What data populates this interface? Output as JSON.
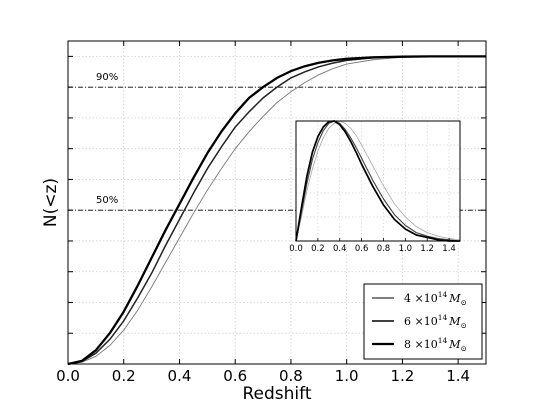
{
  "chart_data": {
    "type": "line",
    "title": "",
    "xlabel": "Redshift",
    "ylabel": "N(<z)",
    "xlim": [
      0.0,
      1.5
    ],
    "ylim": [
      0.0,
      1.05
    ],
    "xticks": [
      "0.0",
      "0.2",
      "0.4",
      "0.6",
      "0.8",
      "1.0",
      "1.2",
      "1.4"
    ],
    "grid": true,
    "reference_lines": [
      {
        "label": "90%",
        "y": 0.9
      },
      {
        "label": "50%",
        "y": 0.5
      }
    ],
    "legend": {
      "placement": "bottom-right",
      "entries": [
        {
          "text": "4 ×10",
          "sup": "14",
          "sym": "M",
          "sub": "⊙",
          "line": "thin"
        },
        {
          "text": "6 ×10",
          "sup": "14",
          "sym": "M",
          "sub": "⊙",
          "line": "medium"
        },
        {
          "text": "8 ×10",
          "sup": "14",
          "sym": "M",
          "sub": "⊙",
          "line": "thick"
        }
      ]
    },
    "series": [
      {
        "line": "thin",
        "color": "#777777",
        "x": [
          0.0,
          0.05,
          0.1,
          0.15,
          0.2,
          0.25,
          0.3,
          0.35,
          0.4,
          0.45,
          0.5,
          0.55,
          0.6,
          0.65,
          0.7,
          0.75,
          0.8,
          0.85,
          0.9,
          0.95,
          1.0,
          1.1,
          1.2,
          1.3,
          1.4,
          1.5
        ],
        "y": [
          0.0,
          0.006,
          0.025,
          0.06,
          0.11,
          0.175,
          0.25,
          0.33,
          0.41,
          0.49,
          0.565,
          0.635,
          0.7,
          0.755,
          0.805,
          0.85,
          0.885,
          0.915,
          0.94,
          0.96,
          0.975,
          0.99,
          0.997,
          0.999,
          1.0,
          1.0
        ]
      },
      {
        "line": "medium",
        "color": "#222222",
        "x": [
          0.0,
          0.05,
          0.1,
          0.15,
          0.2,
          0.25,
          0.3,
          0.35,
          0.4,
          0.45,
          0.5,
          0.55,
          0.6,
          0.65,
          0.7,
          0.75,
          0.8,
          0.85,
          0.9,
          0.95,
          1.0,
          1.1,
          1.2,
          1.3,
          1.4,
          1.5
        ],
        "y": [
          0.0,
          0.008,
          0.035,
          0.08,
          0.14,
          0.215,
          0.295,
          0.385,
          0.47,
          0.555,
          0.635,
          0.705,
          0.77,
          0.82,
          0.865,
          0.9,
          0.93,
          0.95,
          0.966,
          0.978,
          0.987,
          0.996,
          0.999,
          1.0,
          1.0,
          1.0
        ]
      },
      {
        "line": "thick",
        "color": "#000000",
        "x": [
          0.0,
          0.05,
          0.1,
          0.15,
          0.2,
          0.25,
          0.3,
          0.35,
          0.4,
          0.45,
          0.5,
          0.55,
          0.6,
          0.65,
          0.7,
          0.75,
          0.8,
          0.85,
          0.9,
          0.95,
          1.0,
          1.1,
          1.2,
          1.3,
          1.4,
          1.5
        ],
        "y": [
          0.0,
          0.01,
          0.045,
          0.1,
          0.17,
          0.255,
          0.345,
          0.435,
          0.52,
          0.605,
          0.685,
          0.755,
          0.815,
          0.865,
          0.9,
          0.93,
          0.952,
          0.968,
          0.979,
          0.987,
          0.992,
          0.997,
          0.999,
          1.0,
          1.0,
          1.0
        ]
      }
    ],
    "inset": {
      "type": "line",
      "xlim": [
        0.0,
        1.5
      ],
      "ylim": [
        0.0,
        1.0
      ],
      "xticks": [
        "0.0",
        "0.2",
        "0.4",
        "0.6",
        "0.8",
        "1.0",
        "1.2",
        "1.4"
      ],
      "series": [
        {
          "line": "thin",
          "color": "#999999",
          "x": [
            0.0,
            0.05,
            0.1,
            0.15,
            0.2,
            0.25,
            0.3,
            0.35,
            0.4,
            0.45,
            0.5,
            0.55,
            0.6,
            0.7,
            0.8,
            0.9,
            1.0,
            1.1,
            1.2,
            1.3,
            1.4,
            1.5
          ],
          "y": [
            0.0,
            0.2,
            0.42,
            0.6,
            0.75,
            0.86,
            0.94,
            0.98,
            1.0,
            0.98,
            0.94,
            0.88,
            0.8,
            0.63,
            0.46,
            0.31,
            0.2,
            0.12,
            0.07,
            0.04,
            0.02,
            0.01
          ]
        },
        {
          "line": "medium",
          "color": "#444444",
          "x": [
            0.0,
            0.05,
            0.1,
            0.15,
            0.2,
            0.25,
            0.3,
            0.35,
            0.4,
            0.45,
            0.5,
            0.55,
            0.6,
            0.7,
            0.8,
            0.9,
            1.0,
            1.1,
            1.2,
            1.3,
            1.4,
            1.5
          ],
          "y": [
            0.0,
            0.24,
            0.48,
            0.68,
            0.82,
            0.92,
            0.98,
            1.0,
            0.98,
            0.93,
            0.86,
            0.78,
            0.69,
            0.51,
            0.35,
            0.22,
            0.13,
            0.07,
            0.04,
            0.02,
            0.01,
            0.0
          ]
        },
        {
          "line": "thick",
          "color": "#000000",
          "x": [
            0.0,
            0.05,
            0.1,
            0.15,
            0.2,
            0.25,
            0.3,
            0.35,
            0.4,
            0.45,
            0.5,
            0.55,
            0.6,
            0.7,
            0.8,
            0.9,
            1.0,
            1.1,
            1.2,
            1.3,
            1.4,
            1.5
          ],
          "y": [
            0.0,
            0.28,
            0.54,
            0.74,
            0.87,
            0.95,
            0.995,
            1.0,
            0.97,
            0.91,
            0.83,
            0.74,
            0.64,
            0.46,
            0.3,
            0.18,
            0.1,
            0.05,
            0.03,
            0.01,
            0.0,
            0.0
          ]
        }
      ]
    }
  }
}
